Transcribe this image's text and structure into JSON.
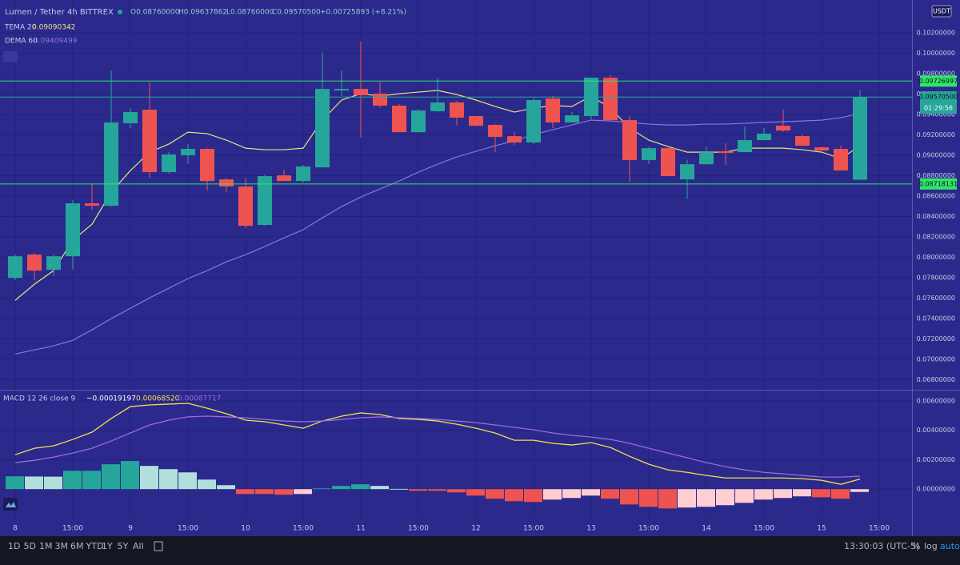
{
  "header": {
    "symbol": "Lumen / Tether  4h  BITTREX",
    "open": "O0.08760000",
    "high": "H0.09637862",
    "low": "L0.08760000",
    "close": "C0.09570500",
    "change": "+0.00725893 (+8.21%)",
    "currency": "USDT"
  },
  "toolbar": {
    "ranges": [
      "1D",
      "5D",
      "1M",
      "3M",
      "6M",
      "YTD",
      "1Y",
      "5Y",
      "All"
    ],
    "clock": "13:30:03 (UTC-5)",
    "percent": "%",
    "log": "log",
    "auto": "auto"
  },
  "chart_data": [
    {
      "type": "candlestick",
      "up_color": "#26a69a",
      "down_color": "#ef5350",
      "grid": true,
      "ylim": [
        0.067,
        0.10522
      ],
      "yticks": [
        {
          "value": 0.068,
          "label": "0.06800000"
        },
        {
          "value": 0.07,
          "label": "0.07000000"
        },
        {
          "value": 0.072,
          "label": "0.07200000"
        },
        {
          "value": 0.074,
          "label": "0.07400000"
        },
        {
          "value": 0.076,
          "label": "0.07600000"
        },
        {
          "value": 0.078,
          "label": "0.07800000"
        },
        {
          "value": 0.08,
          "label": "0.08000000"
        },
        {
          "value": 0.082,
          "label": "0.08200000"
        },
        {
          "value": 0.084,
          "label": "0.08400000"
        },
        {
          "value": 0.086,
          "label": "0.08600000"
        },
        {
          "value": 0.088,
          "label": "0.08800000"
        },
        {
          "value": 0.09,
          "label": "0.09000000"
        },
        {
          "value": 0.092,
          "label": "0.09200000"
        },
        {
          "value": 0.094,
          "label": "0.09400000"
        },
        {
          "value": 0.096,
          "label": "0.09600000"
        },
        {
          "value": 0.098,
          "label": "0.09800000"
        },
        {
          "value": 0.1,
          "label": "0.10000000"
        },
        {
          "value": 0.102,
          "label": "0.10200000"
        }
      ],
      "open": [
        0.07797,
        0.08025,
        0.07876,
        0.08009,
        0.08528,
        0.08504,
        0.09313,
        0.09446,
        0.08834,
        0.08999,
        0.09062,
        0.08763,
        0.08693,
        0.08316,
        0.08802,
        0.08747,
        0.08881,
        0.09635,
        0.0965,
        0.09603,
        0.09486,
        0.09226,
        0.09431,
        0.09517,
        0.09384,
        0.09297,
        0.09187,
        0.09124,
        0.09556,
        0.09321,
        0.09384,
        0.0976,
        0.09344,
        0.08952,
        0.09069,
        0.08763,
        0.08912,
        0.09038,
        0.0903,
        0.09148,
        0.09289,
        0.09187,
        0.09077,
        0.09062,
        0.0876,
        null
      ],
      "high": [
        0.08025,
        0.08041,
        0.08025,
        0.08559,
        0.08716,
        0.09831,
        0.09462,
        0.09713,
        0.0903,
        0.09109,
        0.09069,
        0.08779,
        0.08779,
        0.0881,
        0.08857,
        0.08905,
        0.10004,
        0.09831,
        0.10114,
        0.09721,
        0.09501,
        0.09454,
        0.09753,
        0.09533,
        0.09384,
        0.09305,
        0.09226,
        0.09564,
        0.0958,
        0.09423,
        0.0976,
        0.09784,
        0.09384,
        0.09085,
        0.09085,
        0.08952,
        0.09085,
        0.09117,
        0.09281,
        0.09266,
        0.09446,
        0.09203,
        0.09085,
        0.09093,
        0.09637862,
        null
      ],
      "low": [
        0.07774,
        0.07774,
        0.07813,
        0.07876,
        0.08465,
        0.08496,
        0.09266,
        0.08779,
        0.08818,
        0.08912,
        0.08653,
        0.08638,
        0.08284,
        0.08308,
        0.08747,
        0.08732,
        0.08881,
        0.0958,
        0.09172,
        0.09462,
        0.09226,
        0.09219,
        0.09423,
        0.09289,
        0.09281,
        0.0903,
        0.09101,
        0.09109,
        0.09266,
        0.09321,
        0.09344,
        0.09344,
        0.0874,
        0.08912,
        0.08795,
        0.08575,
        0.08905,
        0.08905,
        0.0903,
        0.09148,
        0.09226,
        0.09085,
        0.0903,
        0.0885,
        0.0876,
        null
      ],
      "close": [
        0.08009,
        0.07868,
        0.08009,
        0.08528,
        0.08504,
        0.09321,
        0.09423,
        0.08834,
        0.09007,
        0.09062,
        0.08747,
        0.08693,
        0.08308,
        0.08795,
        0.08747,
        0.08889,
        0.0965,
        0.0965,
        0.09588,
        0.09486,
        0.09226,
        0.09438,
        0.09517,
        0.09368,
        0.09289,
        0.09179,
        0.09124,
        0.09541,
        0.09321,
        0.09391,
        0.0976,
        0.09344,
        0.08952,
        0.09069,
        0.08795,
        0.08912,
        0.0903,
        0.09022,
        0.09148,
        0.09211,
        0.09242,
        0.09093,
        0.09046,
        0.0885,
        0.095705,
        null
      ],
      "lines": [
        {
          "name": "TEMA 20",
          "color": "#e9e27c",
          "last_label": "0.09090342",
          "values": [
            0.07577,
            0.07735,
            0.07868,
            0.08166,
            0.08323,
            0.08638,
            0.0885,
            0.0903,
            0.09109,
            0.09226,
            0.09211,
            0.09148,
            0.09069,
            0.09054,
            0.09054,
            0.09069,
            0.09344,
            0.09541,
            0.09603,
            0.0958,
            0.09603,
            0.09619,
            0.09635,
            0.09595,
            0.09541,
            0.09478,
            0.09423,
            0.09462,
            0.09486,
            0.09478,
            0.0958,
            0.09462,
            0.09266,
            0.09148,
            0.09085,
            0.0903,
            0.0903,
            0.0903,
            0.09069,
            0.09069,
            0.09069,
            0.09054,
            0.0903,
            0.08967,
            0.09090342,
            null
          ]
        },
        {
          "name": "DEMA 60",
          "color": "#8f72dc",
          "last_label": "0.09409499",
          "values": [
            0.07051,
            0.07091,
            0.0713,
            0.07185,
            0.07287,
            0.07397,
            0.07499,
            0.07601,
            0.07695,
            0.0779,
            0.07868,
            0.07954,
            0.08025,
            0.08104,
            0.0819,
            0.08269,
            0.08386,
            0.08496,
            0.0859,
            0.08669,
            0.08747,
            0.08834,
            0.08912,
            0.08983,
            0.09038,
            0.09093,
            0.0914,
            0.09203,
            0.0925,
            0.09297,
            0.09344,
            0.09336,
            0.09321,
            0.09305,
            0.09297,
            0.09297,
            0.09305,
            0.09305,
            0.09313,
            0.09321,
            0.09328,
            0.09336,
            0.09344,
            0.09368,
            0.09409499,
            null
          ]
        }
      ],
      "hlines": [
        {
          "value": 0.09726997,
          "label": "0.09726997",
          "color": "#2ee66b"
        },
        {
          "value": 0.095705,
          "label": "0.09570500",
          "color": "#26a69a",
          "countdown": "01:29:56"
        },
        {
          "value": 0.08718131,
          "label": "0.08718131",
          "color": "#2ee66b"
        }
      ]
    },
    {
      "type": "macd",
      "title": "MACD 12 26 close 9",
      "grid": true,
      "ylim": [
        -0.002,
        0.0067
      ],
      "yticks": [
        {
          "value": 0,
          "label": "0.00000000"
        },
        {
          "value": 0.002,
          "label": "0.00200000"
        },
        {
          "value": 0.004,
          "label": "0.00400000"
        },
        {
          "value": 0.006,
          "label": "0.00600000"
        }
      ],
      "categories": [
        "8",
        null,
        null,
        "15:00",
        null,
        null,
        "9",
        null,
        null,
        "15:00",
        null,
        null,
        "10",
        null,
        null,
        "15:00",
        null,
        null,
        "11",
        null,
        null,
        "15:00",
        null,
        null,
        "12",
        null,
        null,
        "15:00",
        null,
        null,
        "13",
        null,
        null,
        "15:00",
        null,
        null,
        "14",
        null,
        null,
        "15:00",
        null,
        null,
        "15",
        null,
        null,
        "15:00"
      ],
      "histogram": [
        0.00087,
        0.00086,
        0.00085,
        0.00125,
        0.00125,
        0.00169,
        0.00191,
        0.00158,
        0.00136,
        0.00114,
        0.00065,
        0.00027,
        -0.00033,
        -0.00033,
        -0.00038,
        -0.00033,
        5e-05,
        0.00022,
        0.00033,
        0.00022,
        2e-05,
        -0.00011,
        -0.00011,
        -0.00022,
        -0.00044,
        -0.00065,
        -0.00082,
        -0.00087,
        -0.00071,
        -0.0006,
        -0.00044,
        -0.00065,
        -0.00104,
        -0.0012,
        -0.00131,
        -0.00125,
        -0.0012,
        -0.00109,
        -0.00093,
        -0.00071,
        -0.0006,
        -0.00049,
        -0.00055,
        -0.00065,
        -0.00019197,
        null
      ],
      "histogram_label": "−0.00019197",
      "colors": {
        "up_rising": "#26a69a",
        "up_falling": "#b2dfdb",
        "down_falling": "#ef5350",
        "down_rising": "#ffcdd2"
      },
      "series": [
        {
          "name": "MACD",
          "color": "#f4e04d",
          "last_label": "0.00068520",
          "values": [
            0.00234,
            0.00278,
            0.00294,
            0.00338,
            0.00387,
            0.0048,
            0.00561,
            0.00572,
            0.00578,
            0.00583,
            0.0055,
            0.00512,
            0.00469,
            0.00458,
            0.00436,
            0.00414,
            0.00463,
            0.00496,
            0.00518,
            0.00507,
            0.0048,
            0.00474,
            0.00463,
            0.00441,
            0.00414,
            0.00381,
            0.00332,
            0.00332,
            0.00311,
            0.003,
            0.00316,
            0.00283,
            0.00223,
            0.00169,
            0.00131,
            0.00114,
            0.00093,
            0.00076,
            0.00076,
            0.00076,
            0.00076,
            0.00071,
            0.0006,
            0.00033,
            0.0006852,
            null
          ]
        },
        {
          "name": "Signal",
          "color": "#9b6cdb",
          "last_label": "0.00087717",
          "values": [
            0.0018,
            0.00196,
            0.00218,
            0.00245,
            0.00278,
            0.00327,
            0.00382,
            0.00436,
            0.00469,
            0.00491,
            0.00496,
            0.00491,
            0.00485,
            0.00474,
            0.00463,
            0.00458,
            0.00463,
            0.00474,
            0.00485,
            0.00491,
            0.00485,
            0.0048,
            0.00474,
            0.00463,
            0.00452,
            0.00436,
            0.0042,
            0.00403,
            0.00382,
            0.00365,
            0.00354,
            0.00338,
            0.00311,
            0.00278,
            0.00245,
            0.00213,
            0.0018,
            0.00153,
            0.00131,
            0.00114,
            0.00104,
            0.00093,
            0.00082,
            0.00082,
            0.00087717,
            null
          ]
        }
      ]
    }
  ]
}
